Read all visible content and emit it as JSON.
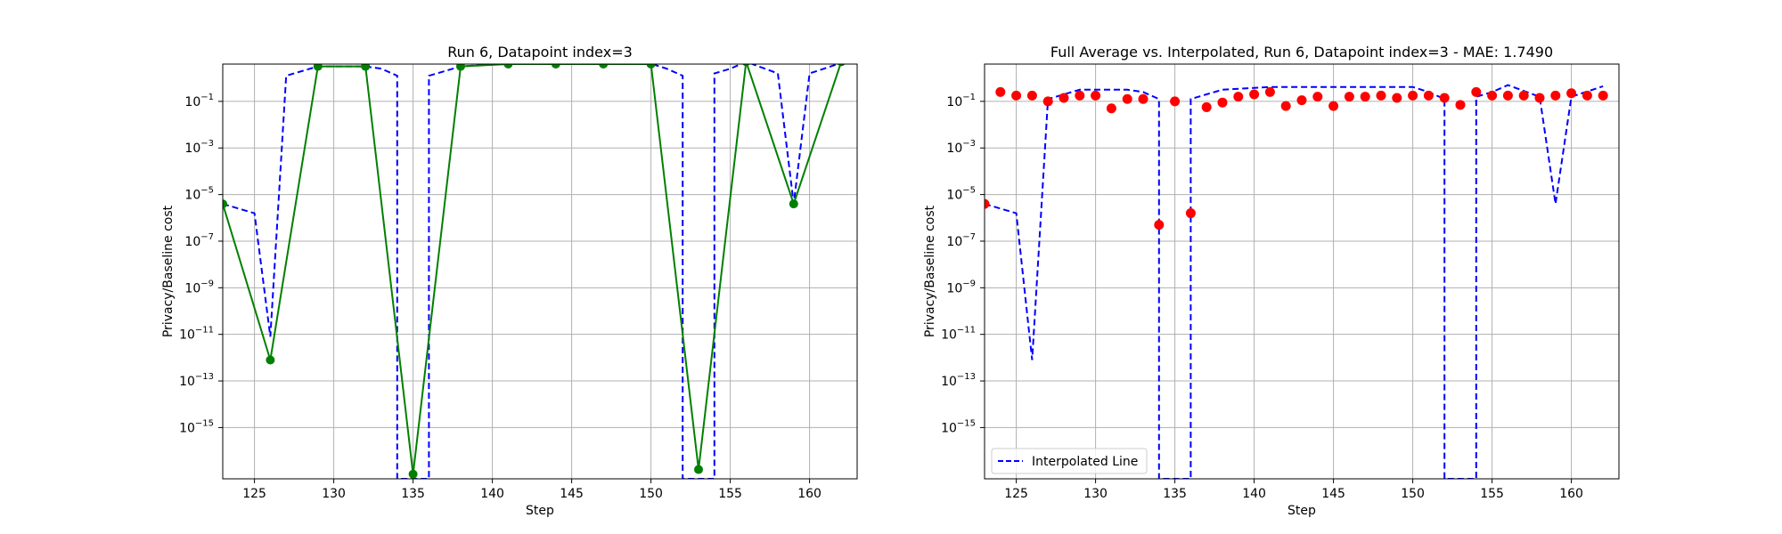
{
  "chart_data": [
    {
      "type": "line",
      "title": "Run 6, Datapoint index=3",
      "xlabel": "Step",
      "ylabel": "Privacy/Baseline cost",
      "xlim": [
        123,
        163
      ],
      "ylim_log10": [
        -17.2,
        0.6
      ],
      "yscale": "log",
      "grid": true,
      "x_ticks": [
        125,
        130,
        135,
        140,
        145,
        150,
        155,
        160
      ],
      "y_ticks_exp": [
        -15,
        -13,
        -11,
        -9,
        -7,
        -5,
        -3,
        -1
      ],
      "interpolated_line": {
        "color": "#0000ff",
        "style": "dashed",
        "points": [
          [
            123,
            -5.4
          ],
          [
            125,
            -5.8
          ],
          [
            126,
            -11.1
          ],
          [
            127,
            0.1
          ],
          [
            129,
            0.5
          ],
          [
            132,
            0.5
          ],
          [
            133,
            0.4
          ],
          [
            134,
            0.1
          ],
          [
            134,
            -17.2
          ],
          [
            136,
            -17.2
          ],
          [
            136,
            0.1
          ],
          [
            137,
            0.3
          ],
          [
            138,
            0.5
          ],
          [
            141,
            0.62
          ],
          [
            150,
            0.62
          ],
          [
            151,
            0.4
          ],
          [
            152,
            0.1
          ],
          [
            152,
            -17.2
          ],
          [
            154,
            -17.2
          ],
          [
            154,
            0.2
          ],
          [
            155,
            0.4
          ],
          [
            156,
            0.7
          ],
          [
            158,
            0.2
          ],
          [
            159,
            -5.4
          ],
          [
            160,
            0.2
          ],
          [
            162,
            0.65
          ]
        ]
      },
      "sampled_line": {
        "color": "#008000",
        "points": [
          [
            123,
            -5.4
          ],
          [
            126,
            -12.1
          ],
          [
            129,
            0.5
          ],
          [
            132,
            0.5
          ],
          [
            135,
            -17.0
          ],
          [
            138,
            0.5
          ],
          [
            141,
            0.6
          ],
          [
            144,
            0.6
          ],
          [
            147,
            0.6
          ],
          [
            150,
            0.6
          ],
          [
            153,
            -16.8
          ],
          [
            156,
            0.7
          ],
          [
            159,
            -5.4
          ],
          [
            162,
            0.7
          ]
        ]
      }
    },
    {
      "type": "scatter",
      "title": "Full Average vs. Interpolated, Run 6, Datapoint index=3 - MAE: 1.7490",
      "xlabel": "Step",
      "ylabel": "Privacy/Baseline cost",
      "xlim": [
        123,
        163
      ],
      "ylim_log10": [
        -17.2,
        0.6
      ],
      "yscale": "log",
      "grid": true,
      "x_ticks": [
        125,
        130,
        135,
        140,
        145,
        150,
        155,
        160
      ],
      "y_ticks_exp": [
        -15,
        -13,
        -11,
        -9,
        -7,
        -5,
        -3,
        -1
      ],
      "legend": {
        "position": "lower-left",
        "entries": [
          "Interpolated Line"
        ]
      },
      "interpolated_line": {
        "name": "Interpolated Line",
        "color": "#0000ff",
        "style": "dashed",
        "points": [
          [
            123,
            -5.4
          ],
          [
            125,
            -5.8
          ],
          [
            126,
            -12.1
          ],
          [
            127,
            -0.9
          ],
          [
            129,
            -0.5
          ],
          [
            132,
            -0.5
          ],
          [
            133,
            -0.6
          ],
          [
            134,
            -0.9
          ],
          [
            134,
            -17.2
          ],
          [
            136,
            -17.2
          ],
          [
            136,
            -0.9
          ],
          [
            137,
            -0.7
          ],
          [
            138,
            -0.5
          ],
          [
            141,
            -0.38
          ],
          [
            150,
            -0.38
          ],
          [
            151,
            -0.6
          ],
          [
            152,
            -0.9
          ],
          [
            152,
            -17.2
          ],
          [
            154,
            -17.2
          ],
          [
            154,
            -0.8
          ],
          [
            155,
            -0.6
          ],
          [
            156,
            -0.3
          ],
          [
            158,
            -0.8
          ],
          [
            159,
            -5.4
          ],
          [
            160,
            -0.8
          ],
          [
            162,
            -0.35
          ]
        ]
      },
      "average_points": {
        "color": "#ff0000",
        "points": [
          [
            123,
            -5.4
          ],
          [
            124,
            -0.6
          ],
          [
            125,
            -0.75
          ],
          [
            126,
            -0.75
          ],
          [
            127,
            -1.0
          ],
          [
            128,
            -0.85
          ],
          [
            129,
            -0.75
          ],
          [
            130,
            -0.75
          ],
          [
            131,
            -1.3
          ],
          [
            132,
            -0.9
          ],
          [
            133,
            -0.9
          ],
          [
            134,
            -6.3
          ],
          [
            135,
            -1.0
          ],
          [
            136,
            -5.8
          ],
          [
            137,
            -1.25
          ],
          [
            138,
            -1.05
          ],
          [
            139,
            -0.8
          ],
          [
            140,
            -0.7
          ],
          [
            141,
            -0.6
          ],
          [
            142,
            -1.2
          ],
          [
            143,
            -0.95
          ],
          [
            144,
            -0.8
          ],
          [
            145,
            -1.2
          ],
          [
            146,
            -0.8
          ],
          [
            147,
            -0.8
          ],
          [
            148,
            -0.75
          ],
          [
            149,
            -0.85
          ],
          [
            150,
            -0.75
          ],
          [
            151,
            -0.75
          ],
          [
            152,
            -0.85
          ],
          [
            153,
            -1.15
          ],
          [
            154,
            -0.6
          ],
          [
            155,
            -0.75
          ],
          [
            156,
            -0.75
          ],
          [
            157,
            -0.75
          ],
          [
            158,
            -0.85
          ],
          [
            159,
            -0.75
          ],
          [
            160,
            -0.65
          ],
          [
            161,
            -0.75
          ],
          [
            162,
            -0.75
          ]
        ]
      }
    }
  ]
}
